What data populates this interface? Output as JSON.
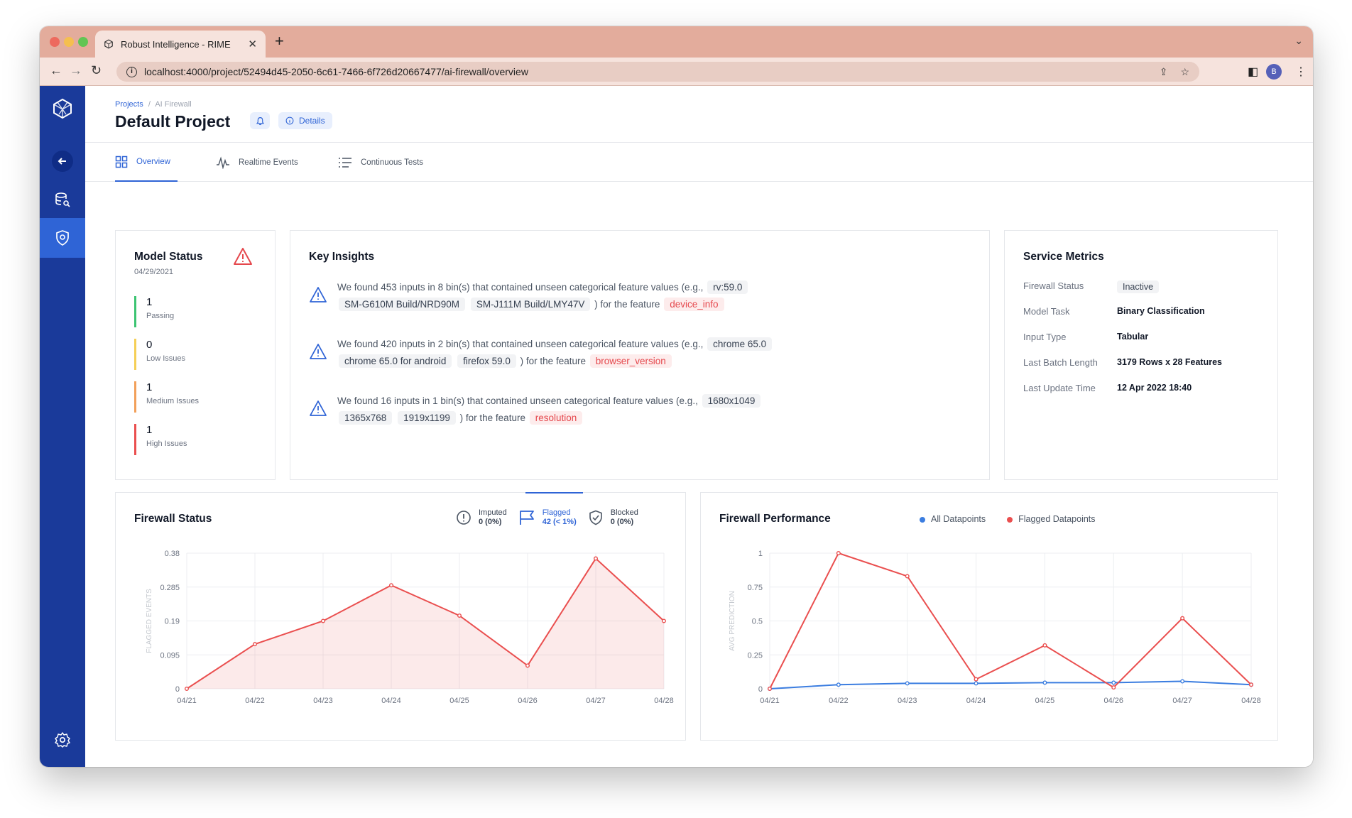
{
  "browser": {
    "tab_title": "Robust Intelligence - RIME",
    "url": "localhost:4000/project/52494d45-2050-6c61-7466-6f726d20667477/ai-firewall/overview",
    "profile_initial": "B"
  },
  "header": {
    "breadcrumb_root": "Projects",
    "breadcrumb_sep": "/",
    "breadcrumb_current": "AI Firewall",
    "title": "Default Project",
    "details_label": "Details"
  },
  "tabs": [
    {
      "label": "Overview",
      "icon": "grid-icon"
    },
    {
      "label": "Realtime Events",
      "icon": "pulse-icon"
    },
    {
      "label": "Continuous Tests",
      "icon": "list-icon"
    }
  ],
  "model_status": {
    "title": "Model Status",
    "date": "04/29/2021",
    "stats": [
      {
        "value": "1",
        "label": "Passing",
        "color": "#3cc472"
      },
      {
        "value": "0",
        "label": "Low Issues",
        "color": "#f5cf56"
      },
      {
        "value": "1",
        "label": "Medium Issues",
        "color": "#f2a05a"
      },
      {
        "value": "1",
        "label": "High Issues",
        "color": "#ea4f4f"
      }
    ]
  },
  "key_insights": {
    "title": "Key Insights",
    "items": [
      {
        "text": "We found 453 inputs in 8 bin(s) that contained unseen categorical feature values (e.g.,",
        "chips": [
          "rv:59.0",
          "SM-G610M Build/NRD90M",
          "SM-J111M Build/LMY47V"
        ],
        "suffix": ") for the feature",
        "feature": "device_info"
      },
      {
        "text": "We found 420 inputs in 2 bin(s) that contained unseen categorical feature values (e.g.,",
        "chips": [
          "chrome 65.0",
          "chrome 65.0 for android",
          "firefox 59.0"
        ],
        "suffix": ") for the feature",
        "feature": "browser_version"
      },
      {
        "text": "We found 16 inputs in 1 bin(s) that contained unseen categorical feature values (e.g.,",
        "chips": [
          "1680x1049",
          "1365x768",
          "1919x1199"
        ],
        "suffix": ") for the feature",
        "feature": "resolution"
      }
    ]
  },
  "service_metrics": {
    "title": "Service Metrics",
    "rows": [
      {
        "key": "Firewall Status",
        "value": "Inactive"
      },
      {
        "key": "Model Task",
        "value": "Binary Classification"
      },
      {
        "key": "Input Type",
        "value": "Tabular"
      },
      {
        "key": "Last Batch Length",
        "value": "3179 Rows x 28 Features"
      },
      {
        "key": "Last Update Time",
        "value": "12 Apr 2022 18:40"
      }
    ]
  },
  "firewall_status": {
    "title": "Firewall Status",
    "legend": [
      {
        "label": "Imputed",
        "value": "0 (0%)",
        "icon": "exclamation-circle-icon"
      },
      {
        "label": "Flagged",
        "value": "42 (< 1%)",
        "icon": "flag-icon"
      },
      {
        "label": "Blocked",
        "value": "0 (0%)",
        "icon": "shield-check-icon"
      }
    ]
  },
  "firewall_performance": {
    "title": "Firewall Performance",
    "legend": [
      {
        "label": "All Datapoints",
        "color": "#3b7de0"
      },
      {
        "label": "Flagged Datapoints",
        "color": "#ea4f4f"
      }
    ]
  },
  "chart_data": [
    {
      "type": "area",
      "ylabel": "FLAGGED EVENTS",
      "x": [
        "04/21",
        "04/22",
        "04/23",
        "04/24",
        "04/25",
        "04/26",
        "04/27",
        "04/28"
      ],
      "yticks": [
        0,
        0.095,
        0.19,
        0.285,
        0.38
      ],
      "ytick_labels": [
        "0",
        "0.095",
        "0.19",
        "0.285",
        "0.38"
      ],
      "ylim": [
        0,
        0.38
      ],
      "series": [
        {
          "values": [
            0,
            0.125,
            0.19,
            0.29,
            0.205,
            0.065,
            0.365,
            0.19
          ],
          "color": "#ea4f4f"
        }
      ],
      "grid": true
    },
    {
      "type": "line",
      "ylabel": "AVG PREDICTION",
      "x": [
        "04/21",
        "04/22",
        "04/23",
        "04/24",
        "04/25",
        "04/26",
        "04/27",
        "04/28"
      ],
      "yticks": [
        0,
        0.25,
        0.5,
        0.75,
        1
      ],
      "ytick_labels": [
        "0",
        "0.25",
        "0.5",
        "0.75",
        "1"
      ],
      "ylim": [
        0,
        1
      ],
      "series": [
        {
          "name": "All Datapoints",
          "values": [
            0.0,
            0.03,
            0.04,
            0.04,
            0.045,
            0.045,
            0.055,
            0.03
          ],
          "color": "#3b7de0"
        },
        {
          "name": "Flagged Datapoints",
          "values": [
            0.0,
            1.0,
            0.83,
            0.07,
            0.32,
            0.01,
            0.52,
            0.03
          ],
          "color": "#ea4f4f"
        }
      ],
      "grid": true
    }
  ]
}
